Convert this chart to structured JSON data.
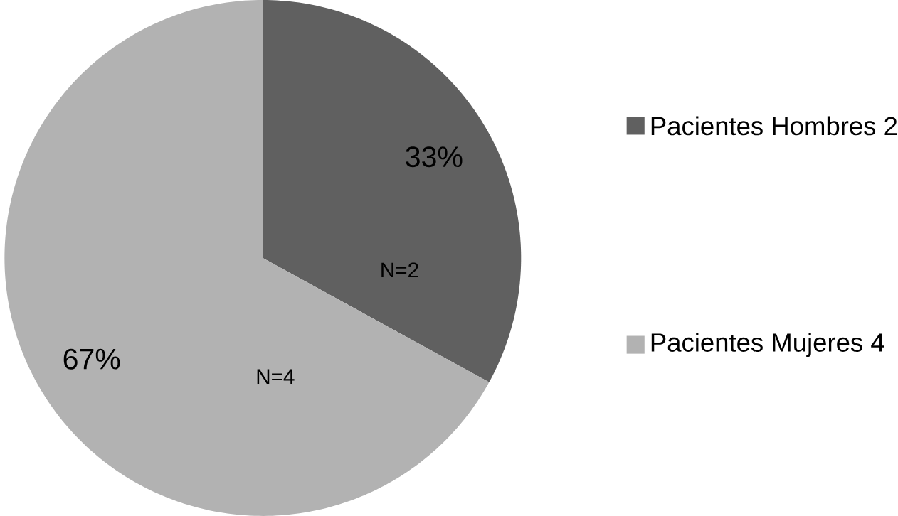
{
  "chart_data": {
    "type": "pie",
    "categories": [
      "Pacientes  Hombres 2",
      "Pacientes  Mujeres 4"
    ],
    "values": [
      33,
      67
    ],
    "colors": [
      "#606060",
      "#b2b2b2"
    ],
    "value_labels": [
      "33%",
      "67%"
    ],
    "annotations": [
      "N=2",
      "N=4"
    ],
    "legend": "right"
  }
}
